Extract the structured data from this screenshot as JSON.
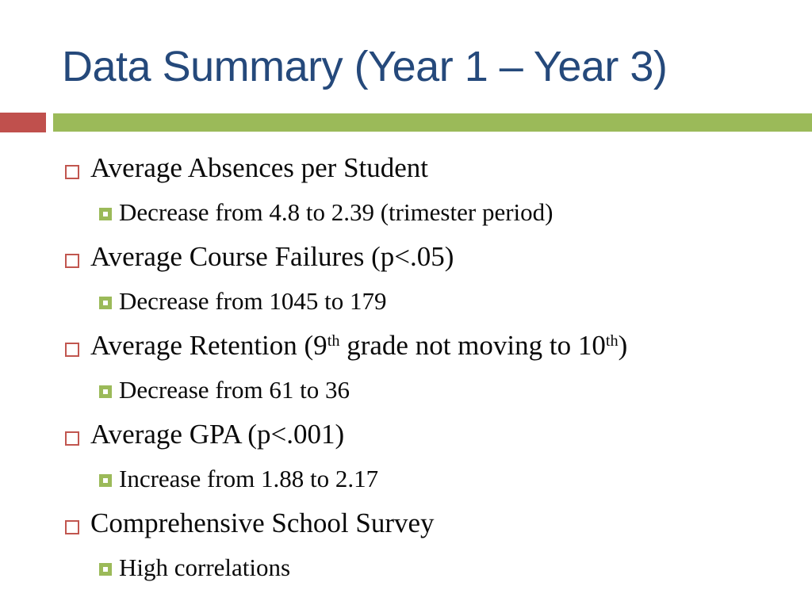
{
  "slide": {
    "title": "Data Summary (Year 1 – Year 3)",
    "colors": {
      "title_blue": "#25497B",
      "accent_red": "#C0504D",
      "accent_green": "#9BBA59",
      "body_text": "#0a0a0a"
    },
    "bullets": [
      {
        "level": 1,
        "text": "Average Absences per Student"
      },
      {
        "level": 2,
        "text": "Decrease from 4.8 to 2.39 (trimester period)"
      },
      {
        "level": 1,
        "text": "Average Course Failures (p<.05)"
      },
      {
        "level": 2,
        "text": "Decrease from 1045 to 179"
      },
      {
        "level": 1,
        "parts": {
          "a": "Average Retention (9",
          "sup1": "th",
          "b": " grade not moving to 10",
          "sup2": "th",
          "c": ")"
        }
      },
      {
        "level": 2,
        "text": "Decrease from 61 to 36"
      },
      {
        "level": 1,
        "text": "Average GPA (p<.001)"
      },
      {
        "level": 2,
        "text": "Increase from 1.88 to 2.17"
      },
      {
        "level": 1,
        "text": "Comprehensive School Survey"
      },
      {
        "level": 2,
        "text": "High correlations"
      }
    ]
  }
}
